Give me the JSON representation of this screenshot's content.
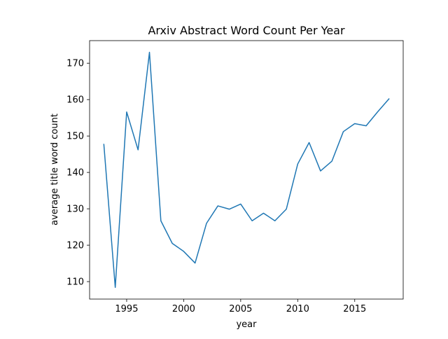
{
  "chart_data": {
    "type": "line",
    "title": "Arxiv Abstract Word Count Per Year",
    "xlabel": "year",
    "ylabel": "average title word count",
    "xlim": [
      1991.75,
      2019.25
    ],
    "ylim": [
      105.2,
      176.2
    ],
    "xticks": [
      1995,
      2000,
      2005,
      2010,
      2015
    ],
    "yticks": [
      110,
      120,
      130,
      140,
      150,
      160,
      170
    ],
    "grid": false,
    "legend": "none",
    "series": [
      {
        "color": "#1f77b4",
        "x": [
          1993,
          1994,
          1995,
          1996,
          1997,
          1998,
          1999,
          2000,
          2001,
          2002,
          2003,
          2004,
          2005,
          2006,
          2007,
          2008,
          2009,
          2010,
          2011,
          2012,
          2013,
          2014,
          2015,
          2016,
          2017,
          2018
        ],
        "y": [
          147.7,
          108.4,
          156.6,
          146.2,
          173.0,
          126.7,
          120.5,
          118.3,
          115.1,
          126.0,
          130.8,
          129.9,
          131.3,
          126.7,
          128.8,
          126.7,
          129.9,
          142.3,
          148.2,
          140.4,
          143.1,
          151.2,
          153.4,
          152.8,
          156.6,
          160.2
        ]
      }
    ]
  }
}
